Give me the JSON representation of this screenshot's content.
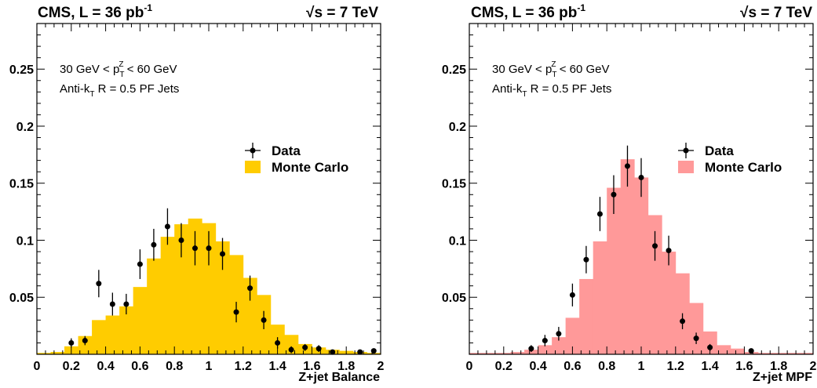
{
  "panels": [
    {
      "id": "balance",
      "header_left": "CMS, L = 36 pb",
      "header_left_sup": "-1",
      "header_right_sqrt": "√",
      "header_right": "s = 7 TeV",
      "cut_label_pre": "30 GeV < p",
      "cut_label_sub": "T",
      "cut_label_sup": "Z",
      "cut_label_post": " < 60 GeV",
      "algo_label_pre": "Anti-k",
      "algo_label_sub": "T",
      "algo_label_post": " R = 0.5 PF Jets",
      "legend_data": "Data",
      "legend_mc": "Monte Carlo",
      "mc_color": "#ffcc00"
    },
    {
      "id": "mpf",
      "header_left": "CMS, L = 36 pb",
      "header_left_sup": "-1",
      "header_right_sqrt": "√",
      "header_right": "s = 7 TeV",
      "cut_label_pre": "30 GeV < p",
      "cut_label_sub": "T",
      "cut_label_sup": "Z",
      "cut_label_post": " < 60 GeV",
      "algo_label_pre": "Anti-k",
      "algo_label_sub": "T",
      "algo_label_post": " R = 0.5 PF Jets",
      "legend_data": "Data",
      "legend_mc": "Monte Carlo",
      "mc_color": "#ff9999"
    }
  ],
  "chart_data": [
    {
      "type": "histogram",
      "title": "",
      "xlabel": "Z+jet Balance",
      "ylabel": "",
      "xlim": [
        0,
        2
      ],
      "ylim": [
        0,
        0.29
      ],
      "x_ticks": [
        "0",
        "0.2",
        "0.4",
        "0.6",
        "0.8",
        "1",
        "1.2",
        "1.4",
        "1.6",
        "1.8",
        "2"
      ],
      "y_ticks": [
        "0.05",
        "0.1",
        "0.15",
        "0.2",
        "0.25"
      ],
      "grid": false,
      "legend_position": "right",
      "series": [
        {
          "name": "Monte Carlo",
          "kind": "histogram",
          "bin_edges": [
            0,
            0.08,
            0.16,
            0.24,
            0.32,
            0.4,
            0.48,
            0.56,
            0.64,
            0.72,
            0.8,
            0.88,
            0.96,
            1.04,
            1.12,
            1.2,
            1.28,
            1.36,
            1.44,
            1.52,
            1.6,
            1.68,
            1.76,
            1.84,
            1.92,
            2.0
          ],
          "values": [
            0.001,
            0.002,
            0.007,
            0.016,
            0.03,
            0.034,
            0.042,
            0.059,
            0.084,
            0.103,
            0.114,
            0.119,
            0.115,
            0.099,
            0.087,
            0.067,
            0.052,
            0.026,
            0.017,
            0.009,
            0.006,
            0.004,
            0.003,
            0.002,
            0.001
          ]
        },
        {
          "name": "Data",
          "kind": "points",
          "x": [
            0.2,
            0.28,
            0.36,
            0.44,
            0.52,
            0.6,
            0.68,
            0.76,
            0.84,
            0.92,
            1.0,
            1.08,
            1.16,
            1.24,
            1.32,
            1.4,
            1.48,
            1.56,
            1.64,
            1.72,
            1.88,
            1.96
          ],
          "y": [
            0.01,
            0.012,
            0.062,
            0.044,
            0.044,
            0.079,
            0.096,
            0.112,
            0.1,
            0.093,
            0.093,
            0.088,
            0.037,
            0.058,
            0.03,
            0.01,
            0.004,
            0.006,
            0.005,
            0.002,
            0.002,
            0.003
          ],
          "err": [
            0.004,
            0.004,
            0.012,
            0.01,
            0.009,
            0.013,
            0.014,
            0.016,
            0.015,
            0.015,
            0.015,
            0.014,
            0.009,
            0.011,
            0.008,
            0.005,
            0.003,
            0.003,
            0.003,
            0.002,
            0.002,
            0.002
          ]
        }
      ]
    },
    {
      "type": "histogram",
      "title": "",
      "xlabel": "Z+jet MPF",
      "ylabel": "",
      "xlim": [
        0,
        2
      ],
      "ylim": [
        0,
        0.29
      ],
      "x_ticks": [
        "0",
        "0.2",
        "0.4",
        "0.6",
        "0.8",
        "1",
        "1.2",
        "1.4",
        "1.6",
        "1.8",
        "2"
      ],
      "y_ticks": [
        "0.05",
        "0.1",
        "0.15",
        "0.2",
        "0.25"
      ],
      "grid": false,
      "legend_position": "right",
      "series": [
        {
          "name": "Monte Carlo",
          "kind": "histogram",
          "bin_edges": [
            0,
            0.08,
            0.16,
            0.24,
            0.32,
            0.4,
            0.48,
            0.56,
            0.64,
            0.72,
            0.8,
            0.88,
            0.96,
            1.04,
            1.12,
            1.2,
            1.28,
            1.36,
            1.44,
            1.52,
            1.6,
            1.68,
            1.76,
            1.84,
            1.92,
            2.0
          ],
          "values": [
            0.0,
            0.0,
            0.001,
            0.002,
            0.004,
            0.008,
            0.015,
            0.032,
            0.066,
            0.099,
            0.146,
            0.171,
            0.155,
            0.122,
            0.09,
            0.071,
            0.045,
            0.02,
            0.008,
            0.005,
            0.002,
            0.001,
            0.0,
            0.0,
            0.0
          ]
        },
        {
          "name": "Data",
          "kind": "points",
          "x": [
            0.36,
            0.44,
            0.52,
            0.6,
            0.68,
            0.76,
            0.84,
            0.92,
            1.0,
            1.08,
            1.16,
            1.24,
            1.32,
            1.4,
            1.64
          ],
          "y": [
            0.005,
            0.012,
            0.018,
            0.052,
            0.083,
            0.123,
            0.14,
            0.165,
            0.155,
            0.095,
            0.091,
            0.029,
            0.014,
            0.006,
            0.003
          ],
          "err": [
            0.003,
            0.005,
            0.006,
            0.01,
            0.012,
            0.015,
            0.017,
            0.018,
            0.017,
            0.013,
            0.013,
            0.007,
            0.005,
            0.003,
            0.002
          ]
        }
      ]
    }
  ]
}
